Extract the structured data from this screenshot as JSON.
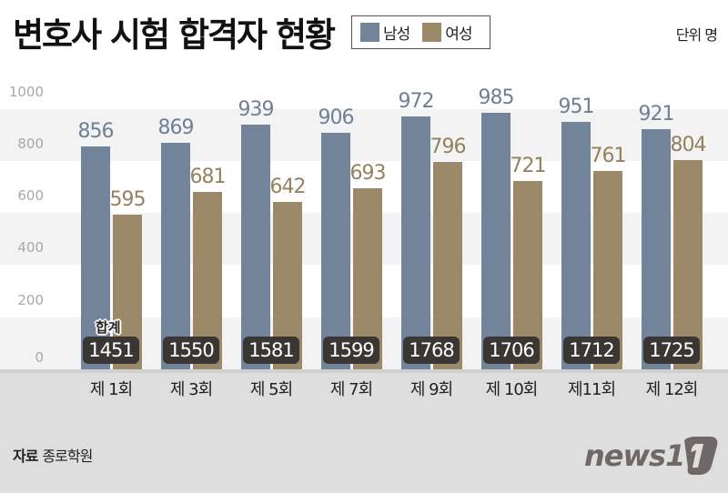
{
  "header": {
    "title": "변호사 시험 합격자 현황",
    "unit": "단위 명"
  },
  "legend": [
    {
      "label": "남성",
      "color": "#718499"
    },
    {
      "label": "여성",
      "color": "#9c8969"
    }
  ],
  "sum_label": "합계",
  "footer": {
    "source_label": "자료",
    "source_value": "종로학원",
    "logo": "news1"
  },
  "colors": {
    "male": "#718499",
    "female": "#9c8969",
    "male_text": "#6e8095",
    "female_text": "#94825f",
    "total_badge": "#3a3634",
    "band_gray": "#f3f3f3",
    "footer": "#dedede"
  },
  "chart_data": {
    "type": "bar",
    "title": "변호사 시험 합격자 현황",
    "xlabel": "",
    "ylabel": "",
    "unit": "단위 명",
    "ylim": [
      0,
      1000
    ],
    "yticks": [
      0,
      200,
      400,
      600,
      800,
      1000
    ],
    "grid": "alternating horizontal bands",
    "legend_position": "top",
    "categories": [
      "제 1회",
      "제 3회",
      "제 5회",
      "제 7회",
      "제 9회",
      "제 10회",
      "제11회",
      "제 12회"
    ],
    "series": [
      {
        "name": "남성",
        "values": [
          856,
          869,
          939,
          906,
          972,
          985,
          951,
          921
        ]
      },
      {
        "name": "여성",
        "values": [
          595,
          681,
          642,
          693,
          796,
          721,
          761,
          804
        ]
      }
    ],
    "totals_label": "합계",
    "totals": [
      1451,
      1550,
      1581,
      1599,
      1768,
      1706,
      1712,
      1725
    ]
  }
}
